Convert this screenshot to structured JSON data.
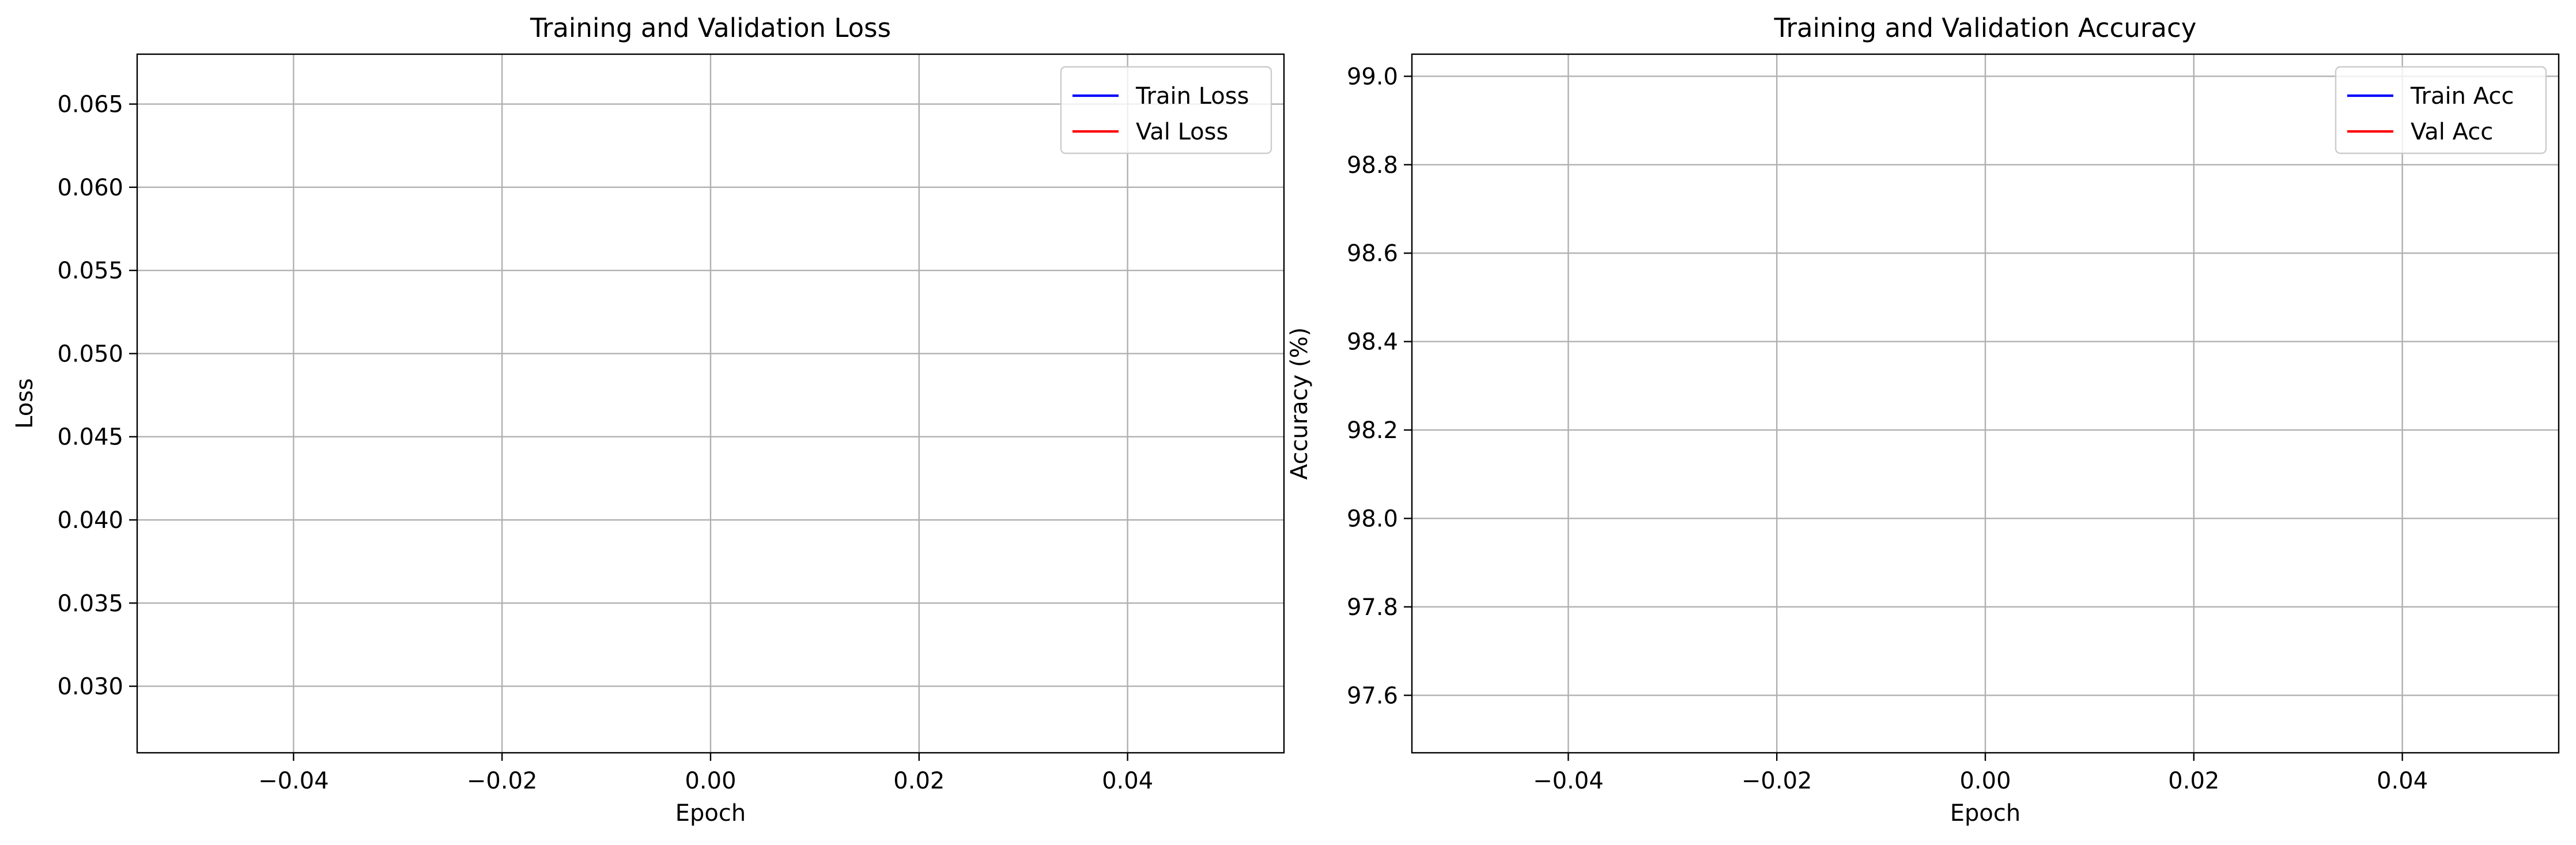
{
  "chart_data": [
    {
      "type": "line",
      "title": "Training and Validation Loss",
      "xlabel": "Epoch",
      "ylabel": "Loss",
      "xlim": [
        -0.055,
        0.055
      ],
      "ylim": [
        0.026,
        0.068
      ],
      "xticks": [
        -0.04,
        -0.02,
        0.0,
        0.02,
        0.04
      ],
      "xtick_labels": [
        "−0.04",
        "−0.02",
        "0.00",
        "0.02",
        "0.04"
      ],
      "yticks": [
        0.03,
        0.035,
        0.04,
        0.045,
        0.05,
        0.055,
        0.06,
        0.065
      ],
      "ytick_labels": [
        "0.030",
        "0.035",
        "0.040",
        "0.045",
        "0.050",
        "0.055",
        "0.060",
        "0.065"
      ],
      "grid": true,
      "legend_position": "top-right",
      "series": [
        {
          "name": "Train Loss",
          "color": "#0000ff",
          "x": [],
          "y": []
        },
        {
          "name": "Val Loss",
          "color": "#ff0000",
          "x": [],
          "y": []
        }
      ]
    },
    {
      "type": "line",
      "title": "Training and Validation Accuracy",
      "xlabel": "Epoch",
      "ylabel": "Accuracy (%)",
      "xlim": [
        -0.055,
        0.055
      ],
      "ylim": [
        97.47,
        99.05
      ],
      "xticks": [
        -0.04,
        -0.02,
        0.0,
        0.02,
        0.04
      ],
      "xtick_labels": [
        "−0.04",
        "−0.02",
        "0.00",
        "0.02",
        "0.04"
      ],
      "yticks": [
        97.6,
        97.8,
        98.0,
        98.2,
        98.4,
        98.6,
        98.8,
        99.0
      ],
      "ytick_labels": [
        "97.6",
        "97.8",
        "98.0",
        "98.2",
        "98.4",
        "98.6",
        "98.8",
        "99.0"
      ],
      "grid": true,
      "legend_position": "top-right",
      "series": [
        {
          "name": "Train Acc",
          "color": "#0000ff",
          "x": [],
          "y": []
        },
        {
          "name": "Val Acc",
          "color": "#ff0000",
          "x": [],
          "y": []
        }
      ]
    }
  ]
}
